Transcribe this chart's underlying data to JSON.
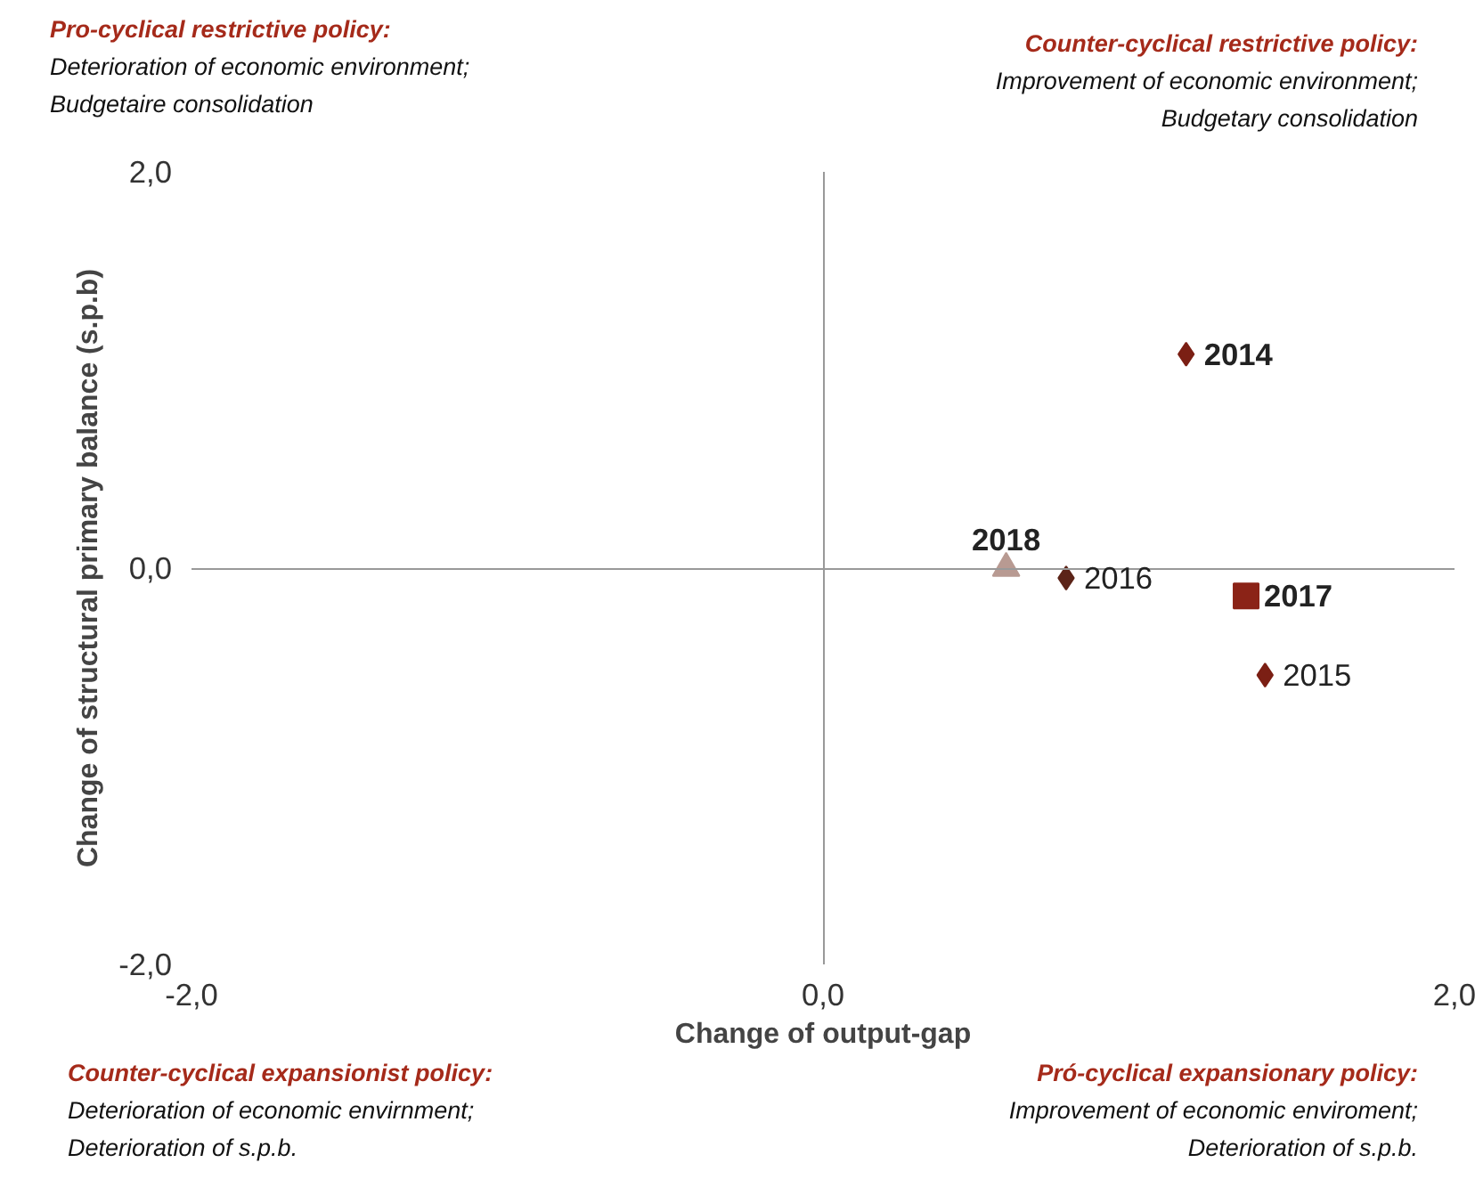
{
  "chart_data": {
    "type": "scatter",
    "xlabel": "Change of output-gap",
    "ylabel": "Change of structural primary balance (s.p.b)",
    "xlim": [
      -2,
      2
    ],
    "ylim": [
      -2,
      2
    ],
    "xticks": [
      {
        "value": -2,
        "label": "-2,0"
      },
      {
        "value": 0,
        "label": "0,0"
      },
      {
        "value": 2,
        "label": "2,0"
      }
    ],
    "yticks": [
      {
        "value": -2,
        "label": "-2,0"
      },
      {
        "value": 0,
        "label": "0,0"
      },
      {
        "value": 2,
        "label": "2,0"
      }
    ],
    "series": [
      {
        "name": "2014",
        "color": "#7b1f14",
        "marker": "diamond",
        "x": [
          1.15
        ],
        "values": [
          1.08
        ]
      },
      {
        "name": "2015",
        "color": "#7b1f14",
        "marker": "diamond",
        "x": [
          1.4
        ],
        "values": [
          -0.54
        ]
      },
      {
        "name": "2016",
        "color": "#5c2418",
        "marker": "diamond",
        "x": [
          0.77
        ],
        "values": [
          -0.05
        ]
      },
      {
        "name": "2017",
        "color": "#8b2317",
        "marker": "square",
        "x": [
          1.34
        ],
        "values": [
          -0.14
        ]
      },
      {
        "name": "2018",
        "color": "#b89a92",
        "marker": "triangle",
        "x": [
          0.58
        ],
        "values": [
          0.0
        ]
      }
    ],
    "annotations": [
      "Pro-cyclical restrictive policy:",
      "Deterioration of economic environment;",
      "Budgetaire consolidation",
      "Counter-cyclical restrictive policy:",
      "Improvement of economic environment;",
      "Budgetary consolidation",
      "Counter-cyclical expansionist policy:",
      "Deterioration of economic envirnment;",
      "Deterioration of s.p.b.",
      "Pró-cyclical expansionary policy:",
      "Improvement of economic enviroment;",
      "Deterioration of s.p.b."
    ]
  }
}
